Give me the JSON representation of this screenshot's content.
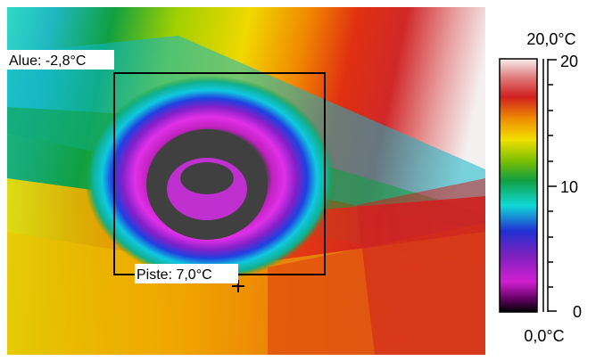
{
  "measurements": {
    "area_label": "Alue: -2,8°C",
    "spot_label": "Piste: 7,0°C"
  },
  "scale": {
    "max_label": "20,0°C",
    "min_label": "0,0°C",
    "tick_top": "20",
    "tick_mid": "10",
    "tick_bottom": "0"
  },
  "colors": {
    "hot": "#cc1010",
    "warm": "#f0a000",
    "mid_yellow": "#e8e800",
    "green": "#10a030",
    "cyan": "#10d8d8",
    "blue": "#2030d0",
    "purple": "#a020c0",
    "magenta": "#e020e0",
    "cold": "#404040"
  }
}
